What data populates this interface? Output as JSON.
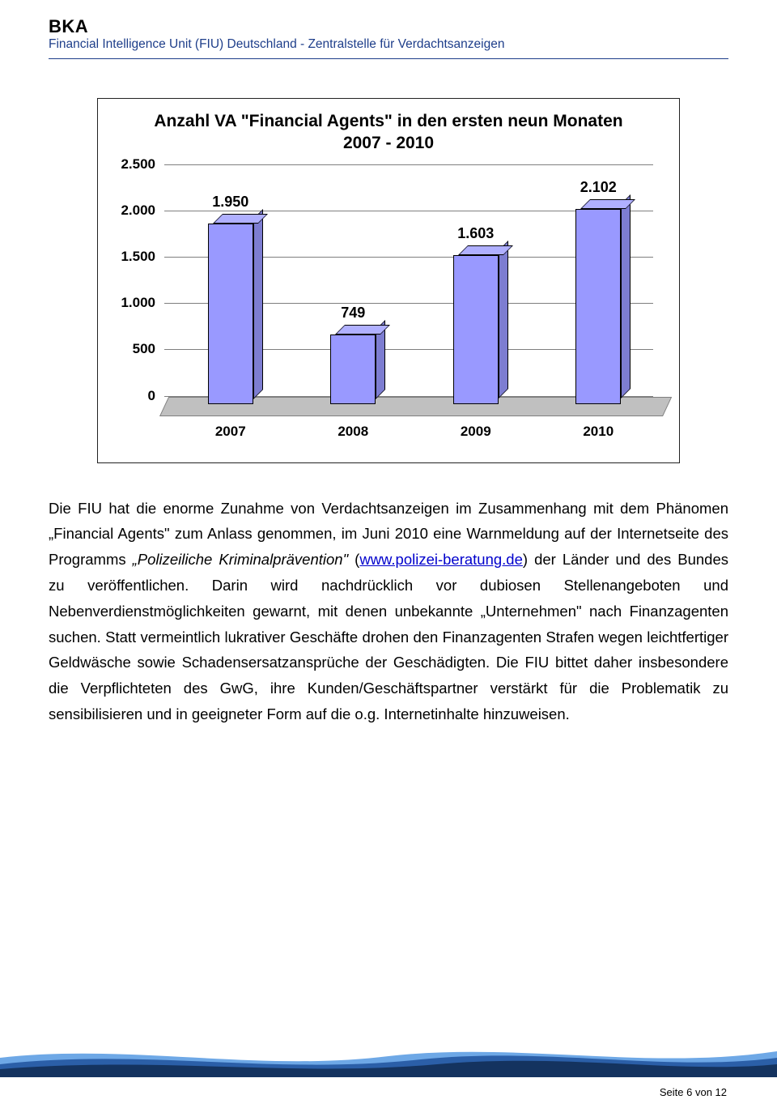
{
  "header": {
    "bka": "BKA",
    "fiu_line": "Financial Intelligence Unit (FIU) Deutschland - Zentralstelle für Verdachtsanzeigen"
  },
  "chart": {
    "type": "bar",
    "title_line1": "Anzahl VA \"Financial Agents\" in den ersten neun Monaten",
    "title_line2": "2007 - 2010",
    "categories": [
      "2007",
      "2008",
      "2009",
      "2010"
    ],
    "values": [
      1950,
      749,
      1603,
      2102
    ],
    "value_labels": [
      "1.950",
      "749",
      "1.603",
      "2.102"
    ],
    "bar_color": "#9999ff",
    "ylim": [
      0,
      2500
    ],
    "ytick_step": 500,
    "ytick_labels": [
      "0",
      "500",
      "1.000",
      "1.500",
      "2.000",
      "2.500"
    ],
    "grid_color": "#7f7f7f",
    "floor_color": "#c0c0c0",
    "title_fontsize": 20,
    "label_fontsize": 17
  },
  "body": {
    "text_before_italic": "Die FIU hat die enorme Zunahme von Verdachtsanzeigen im Zusammenhang mit dem Phänomen „Financial Agents\" zum Anlass genommen, im Juni 2010 eine Warnmeldung auf der Internetseite des Programms ",
    "italic_part": "„Polizeiliche Kriminalprävention\"",
    "open_paren": " (",
    "link_text": "www.polizei-beratung.de",
    "close_paren": ")",
    "text_after_link": " der Länder und des Bundes zu veröffentlichen. Darin wird nachdrücklich vor dubiosen Stellenangeboten und Nebenverdienstmöglichkeiten gewarnt, mit denen unbekannte „Unternehmen\" nach Finanzagenten suchen. Statt vermeintlich lukrativer Geschäfte drohen den Finanzagenten Strafen wegen leichtfertiger Geldwäsche sowie Schadensersatzansprüche der Geschädigten. Die FIU bittet daher insbesondere die Verpflichteten des GwG, ihre Kunden/Geschäftspartner verstärkt für die Problematik zu sensibilisieren und in geeigneter Form auf die o.g. Internetinhalte hinzuweisen."
  },
  "footer": {
    "page": "Seite 6 von 12",
    "wave_light": "#6ea8e6",
    "wave_mid": "#2b5fa8",
    "wave_dark": "#14335f"
  }
}
